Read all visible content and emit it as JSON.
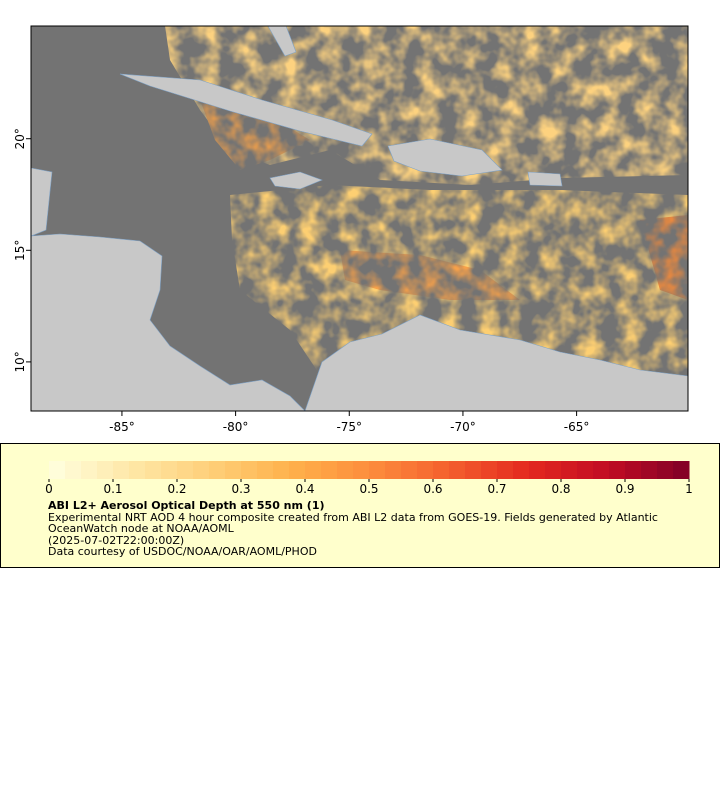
{
  "map": {
    "xlim": [
      -89,
      -60.1
    ],
    "ylim": [
      7.8,
      25.05
    ],
    "xticks": [
      {
        "value": -85,
        "label": "-85°"
      },
      {
        "value": -80,
        "label": "-80°"
      },
      {
        "value": -75,
        "label": "-75°"
      },
      {
        "value": -70,
        "label": "-70°"
      },
      {
        "value": -65,
        "label": "-65°"
      }
    ],
    "yticks": [
      {
        "value": 10,
        "label": "10°"
      },
      {
        "value": 15,
        "label": "15°"
      },
      {
        "value": 20,
        "label": "20°"
      }
    ]
  },
  "colorbar": {
    "lim": [
      0,
      1
    ],
    "ticks": [
      0,
      0.1,
      0.2,
      0.3,
      0.4,
      0.5,
      0.6,
      0.7,
      0.8,
      0.9,
      1
    ],
    "colors": [
      "#ffffe0",
      "#fee8a8",
      "#fed07a",
      "#feb24c",
      "#fd8d3c",
      "#f4602d",
      "#e3281e",
      "#c00c23",
      "#800026"
    ]
  },
  "legend": {
    "title": "ABI L2+ Aerosol Optical Depth at 550 nm (1)",
    "description": "Experimental NRT AOD 4 hour composite created from ABI L2 data from GOES-19. Fields generated by Atlantic OceanWatch node at NOAA/AOML",
    "time": "(2025-07-02T22:00:00Z)",
    "credit": "Data courtesy of USDOC/NOAA/OAR/AOML/PHOD"
  }
}
